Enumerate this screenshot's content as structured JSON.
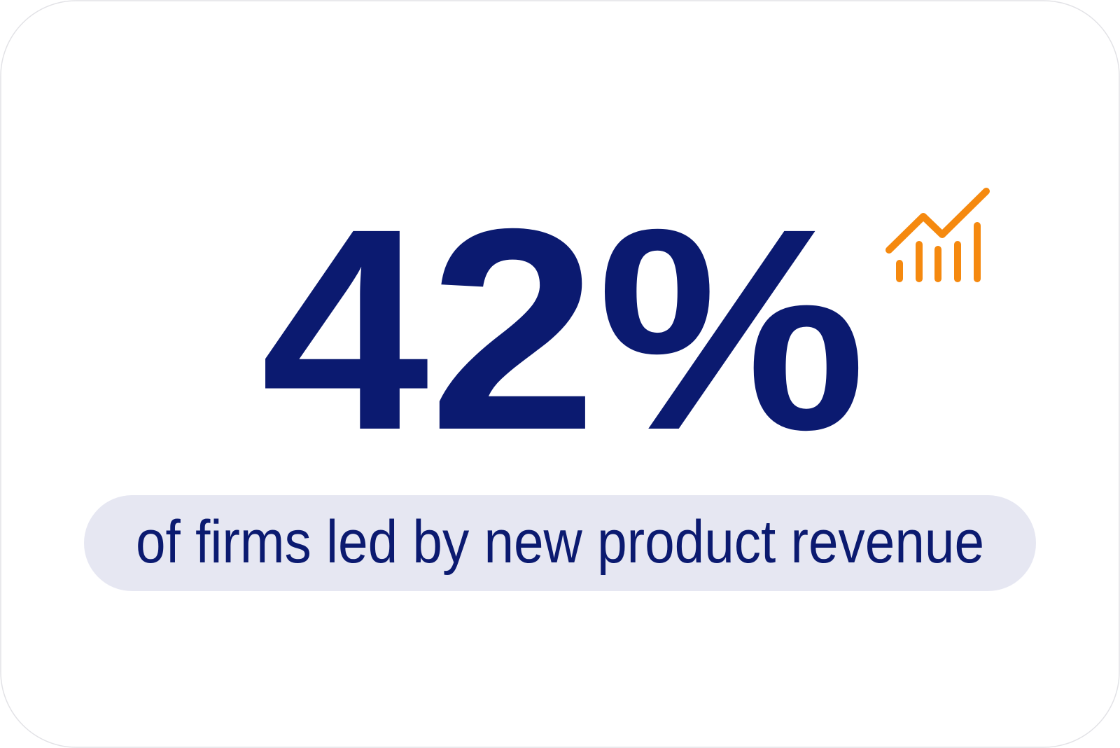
{
  "stat": {
    "value": "42%",
    "caption": "of firms led by new product revenue"
  }
}
